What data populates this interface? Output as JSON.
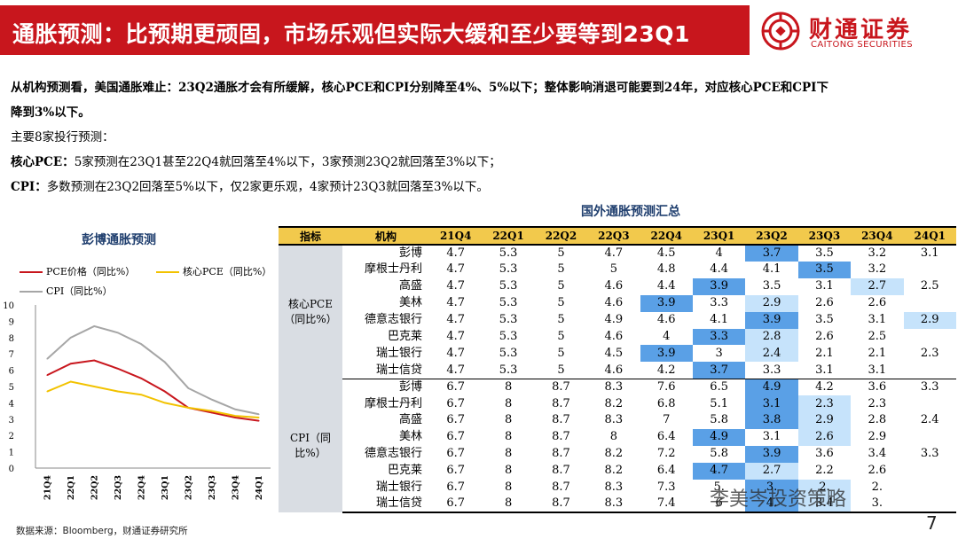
{
  "header": {
    "title": "通胀预测：比预期更顽固，市场乐观但实际大缓和至少要等到23Q1",
    "logo_cn": "财通证券",
    "logo_en": "CAITONG SECURITIES",
    "brand_color": "#c8161d"
  },
  "description": {
    "line1": "从机构预测看，美国通胀难止：23Q2通胀才会有所缓解，核心PCE和CPI分别降至4%、5%以下；整体影响消退可能要到24年，对应核心PCE和CPI下",
    "line2": "降到3%以下。",
    "line3": "主要8家投行预测：",
    "line4_label": "核心PCE：",
    "line4_text": "5家预测在23Q1甚至22Q4就回落至4%以下，3家预测23Q2就回落至3%以下；",
    "line5_label": "CPI：",
    "line5_text": "多数预测在23Q2回落至5%以下，仅2家更乐观，4家预计23Q3就回落至3%以下。"
  },
  "chart_data": {
    "type": "line",
    "title": "彭博通胀预测",
    "categories": [
      "21Q4",
      "22Q1",
      "22Q2",
      "22Q3",
      "22Q4",
      "23Q1",
      "23Q2",
      "23Q3",
      "23Q4",
      "24Q1"
    ],
    "series": [
      {
        "name": "PCE价格（同比%）",
        "color": "#c8161d",
        "values": [
          5.7,
          6.4,
          6.6,
          6.1,
          5.5,
          4.7,
          3.7,
          3.4,
          3.1,
          2.9
        ]
      },
      {
        "name": "核心PCE（同比%）",
        "color": "#f2c200",
        "values": [
          4.7,
          5.3,
          5.0,
          4.7,
          4.5,
          4.0,
          3.7,
          3.5,
          3.2,
          3.1
        ]
      },
      {
        "name": "CPI（同比%）",
        "color": "#a6a6a6",
        "values": [
          6.7,
          8.0,
          8.7,
          8.3,
          7.6,
          6.5,
          4.9,
          4.2,
          3.6,
          3.3
        ]
      }
    ],
    "ylim": [
      0,
      10
    ],
    "yticks": [
      "0",
      "1",
      "2",
      "3",
      "4",
      "5",
      "6",
      "7",
      "8",
      "9",
      "10"
    ]
  },
  "table": {
    "title": "国外通胀预测汇总",
    "headers": [
      "指标",
      "机构",
      "21Q4",
      "22Q1",
      "22Q2",
      "22Q3",
      "22Q4",
      "23Q1",
      "23Q2",
      "23Q3",
      "23Q4",
      "24Q1"
    ],
    "groups": [
      {
        "indicator": "核心PCE（同比%）",
        "rows": [
          {
            "inst": "彭博",
            "vals": [
              "4.7",
              "5.3",
              "5",
              "4.7",
              "4.5",
              "4",
              "3.7",
              "3.5",
              "3.2",
              "3.1"
            ]
          },
          {
            "inst": "摩根士丹利",
            "vals": [
              "4.7",
              "5.3",
              "5",
              "5",
              "4.8",
              "4.4",
              "4.1",
              "3.5",
              "3.2",
              ""
            ]
          },
          {
            "inst": "高盛",
            "vals": [
              "4.7",
              "5.3",
              "5",
              "4.6",
              "4.4",
              "3.9",
              "3.5",
              "3.1",
              "2.7",
              "2.5"
            ]
          },
          {
            "inst": "美林",
            "vals": [
              "4.7",
              "5.3",
              "5",
              "4.6",
              "3.9",
              "3.3",
              "2.9",
              "2.6",
              "2.6",
              ""
            ]
          },
          {
            "inst": "德意志银行",
            "vals": [
              "4.7",
              "5.3",
              "5",
              "4.9",
              "4.6",
              "4.1",
              "3.9",
              "3.5",
              "3.1",
              "2.9"
            ]
          },
          {
            "inst": "巴克莱",
            "vals": [
              "4.7",
              "5.3",
              "5",
              "4.6",
              "4",
              "3.3",
              "2.8",
              "2.6",
              "2.5",
              ""
            ]
          },
          {
            "inst": "瑞士银行",
            "vals": [
              "4.7",
              "5.3",
              "5",
              "4.5",
              "3.9",
              "3",
              "2.4",
              "2.1",
              "2.1",
              "2.3"
            ]
          },
          {
            "inst": "瑞士信贷",
            "vals": [
              "4.7",
              "5.3",
              "5",
              "4.6",
              "4.2",
              "3.7",
              "3.3",
              "3.1",
              "3.1",
              ""
            ]
          }
        ]
      },
      {
        "indicator": "CPI（同比%）",
        "rows": [
          {
            "inst": "彭博",
            "vals": [
              "6.7",
              "8",
              "8.7",
              "8.3",
              "7.6",
              "6.5",
              "4.9",
              "4.2",
              "3.6",
              "3.3"
            ]
          },
          {
            "inst": "摩根士丹利",
            "vals": [
              "6.7",
              "8",
              "8.7",
              "8.2",
              "6.8",
              "5.1",
              "3.1",
              "2.3",
              "2.3",
              ""
            ]
          },
          {
            "inst": "高盛",
            "vals": [
              "6.7",
              "8",
              "8.7",
              "8.3",
              "7",
              "5.8",
              "3.8",
              "2.9",
              "2.8",
              "2.4"
            ]
          },
          {
            "inst": "美林",
            "vals": [
              "6.7",
              "8",
              "8.7",
              "8",
              "6.4",
              "4.9",
              "3.1",
              "2.6",
              "2.9",
              ""
            ]
          },
          {
            "inst": "德意志银行",
            "vals": [
              "6.7",
              "8",
              "8.7",
              "8.2",
              "7.2",
              "5.8",
              "3.9",
              "3.6",
              "3.4",
              "3.3"
            ]
          },
          {
            "inst": "巴克莱",
            "vals": [
              "6.7",
              "8",
              "8.7",
              "8.2",
              "6.4",
              "4.7",
              "2.7",
              "2.2",
              "2.6",
              ""
            ]
          },
          {
            "inst": "瑞士银行",
            "vals": [
              "6.7",
              "8",
              "8.7",
              "8.3",
              "7.3",
              "5.",
              "3.",
              "2.",
              "2.",
              ""
            ]
          },
          {
            "inst": "瑞士信贷",
            "vals": [
              "6.7",
              "8",
              "8.7",
              "8.3",
              "7.4",
              "6",
              "4.",
              "3.4",
              "3.",
              ""
            ]
          }
        ]
      }
    ],
    "highlight_blue": "#5aa0e6",
    "highlight_light": "#c6e3fb"
  },
  "footer": {
    "source": "数据来源：Bloomberg，财通证券研究所",
    "watermark": "李美岑投资策略",
    "page": "7"
  }
}
